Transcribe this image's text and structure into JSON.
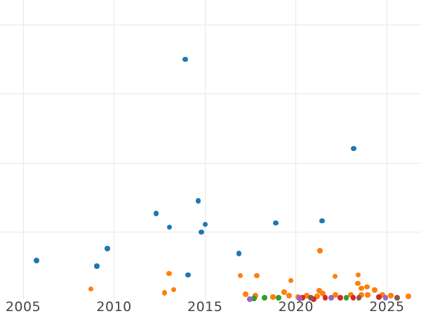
{
  "figure": {
    "background": "#ffffff",
    "grid_color": "#e8e8e8",
    "tick_label_color": "#444444"
  },
  "chart_data": {
    "type": "scatter",
    "title": "",
    "xlabel": "",
    "ylabel": "",
    "grid": true,
    "legend": "none visible",
    "marker_diameter_px": 7.5,
    "x_axis": {
      "ticks": [
        2005,
        2010,
        2015,
        2020,
        2025
      ],
      "labels": [
        "2005",
        "2010",
        "2015",
        "2020",
        "2025"
      ]
    },
    "y_axis": {
      "ticks": [
        1,
        2,
        3,
        4
      ],
      "labels": [],
      "note": "no y tick labels visible; values expressed in gridline units (1 unit = one gridline spacing, baseline 0 at plot bottom)"
    },
    "xlim": [
      2003.73,
      2026.88
    ],
    "ylim": [
      -0.21,
      4.36
    ],
    "series": [
      {
        "name": "blue",
        "color": "#1f77b4",
        "points": [
          [
            2013.91,
            3.5
          ],
          [
            2023.17,
            2.21
          ],
          [
            2014.62,
            1.45
          ],
          [
            2012.32,
            1.27
          ],
          [
            2013.05,
            1.07
          ],
          [
            2015.02,
            1.11
          ],
          [
            2014.79,
            1.0
          ],
          [
            2018.89,
            1.13
          ],
          [
            2021.44,
            1.16
          ],
          [
            2016.87,
            0.69
          ],
          [
            2009.62,
            0.76
          ],
          [
            2005.73,
            0.59
          ],
          [
            2009.06,
            0.51
          ],
          [
            2014.06,
            0.38
          ]
        ]
      },
      {
        "name": "orange",
        "color": "#ff7f0e",
        "points": [
          [
            2008.72,
            0.18
          ],
          [
            2013.03,
            0.4
          ],
          [
            2012.77,
            0.12
          ],
          [
            2013.28,
            0.17
          ],
          [
            2016.95,
            0.37
          ],
          [
            2017.85,
            0.37
          ],
          [
            2019.71,
            0.3
          ],
          [
            2021.32,
            0.73
          ],
          [
            2022.14,
            0.36
          ],
          [
            2023.43,
            0.38
          ],
          [
            2023.4,
            0.26
          ],
          [
            2023.59,
            0.19
          ],
          [
            2023.9,
            0.21
          ],
          [
            2017.23,
            0.1
          ],
          [
            2017.77,
            0.08
          ],
          [
            2018.73,
            0.06
          ],
          [
            2019.35,
            0.13
          ],
          [
            2019.62,
            0.08
          ],
          [
            2020.12,
            0.06
          ],
          [
            2020.59,
            0.08
          ],
          [
            2021.17,
            0.07
          ],
          [
            2021.28,
            0.15
          ],
          [
            2021.48,
            0.11
          ],
          [
            2022.17,
            0.09
          ],
          [
            2023.02,
            0.09
          ],
          [
            2023.59,
            0.09
          ],
          [
            2023.94,
            0.09
          ],
          [
            2024.32,
            0.16
          ],
          [
            2024.75,
            0.09
          ],
          [
            2025.22,
            0.08
          ],
          [
            2026.18,
            0.07
          ]
        ]
      },
      {
        "name": "green",
        "color": "#2ca02c",
        "points": [
          [
            2017.69,
            0.04
          ],
          [
            2018.28,
            0.05
          ],
          [
            2019.05,
            0.05
          ],
          [
            2022.76,
            0.05
          ]
        ]
      },
      {
        "name": "red",
        "color": "#d62728",
        "points": [
          [
            2020.36,
            0.05
          ],
          [
            2020.97,
            0.03
          ],
          [
            2021.6,
            0.05
          ],
          [
            2022.44,
            0.05
          ],
          [
            2023.15,
            0.05
          ],
          [
            2024.56,
            0.06
          ]
        ]
      },
      {
        "name": "purple",
        "color": "#9467bd",
        "points": [
          [
            2017.46,
            0.03
          ],
          [
            2020.2,
            0.04
          ],
          [
            2021.93,
            0.05
          ],
          [
            2024.92,
            0.05
          ]
        ]
      },
      {
        "name": "brown",
        "color": "#8c564b",
        "points": [
          [
            2020.82,
            0.05
          ],
          [
            2023.47,
            0.05
          ],
          [
            2025.57,
            0.05
          ]
        ]
      }
    ]
  }
}
